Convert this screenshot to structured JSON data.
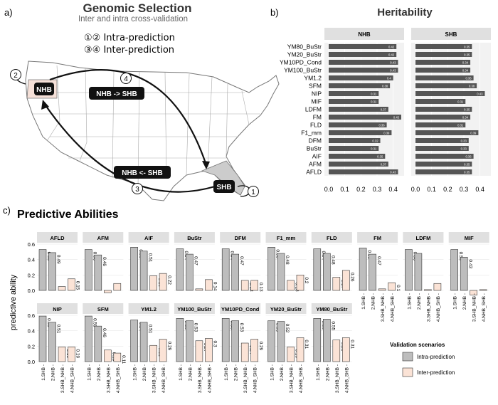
{
  "panel_a": {
    "label": "a)",
    "title": "Genomic Selection",
    "subtitle": "Inter and intra cross-validation",
    "legend_intra": "①② Intra-prediction",
    "legend_inter": "③④ Inter-prediction",
    "box_nhb": "NHB",
    "box_shb": "SHB",
    "arrow_forward": "NHB -> SHB",
    "arrow_backward": "NHB <- SHB",
    "circle_1": "1",
    "circle_2": "2",
    "circle_3": "3",
    "circle_4": "4"
  },
  "panel_b": {
    "label": "b)"
  },
  "panel_c": {
    "label": "c)"
  },
  "colors": {
    "heritability_bar": "#555555",
    "intra": "#bdbdbd",
    "inter": "#fbe3d6",
    "strip": "#e0e0e0",
    "nhb_state": "#f5e0d8",
    "shb_state": "#cccccc"
  },
  "chart_data": [
    {
      "type": "bar",
      "orientation": "horizontal",
      "title": "Heritability",
      "facets": [
        "NHB",
        "SHB"
      ],
      "categories": [
        "YM80_BuStr",
        "YM20_BuStr",
        "YM10PD_Cond",
        "YM100_BuStr",
        "YM1.2",
        "SFM",
        "NIP",
        "MIF",
        "LDFM",
        "FM",
        "FLD",
        "F1_mm",
        "DFM",
        "BuStr",
        "AIF",
        "AFM",
        "AFLD"
      ],
      "series": [
        {
          "name": "NHB",
          "values": [
            0.42,
            0.42,
            0.43,
            0.43,
            0.4,
            0.38,
            0.31,
            0.31,
            0.37,
            0.45,
            0.36,
            0.39,
            0.32,
            0.31,
            0.35,
            0.37,
            0.43
          ]
        },
        {
          "name": "SHB",
          "values": [
            0.35,
            0.35,
            0.34,
            0.34,
            0.36,
            0.38,
            0.43,
            0.31,
            0.35,
            0.34,
            0.31,
            0.39,
            0.33,
            0.33,
            0.36,
            0.35,
            0.35
          ]
        }
      ],
      "xlim": [
        0,
        0.45
      ],
      "xticks": [
        "0.0",
        "0.1",
        "0.2",
        "0.3",
        "0.4"
      ]
    },
    {
      "type": "bar",
      "title": "Predictive Abilities",
      "ylabel": "predictive ability",
      "ylim": [
        0,
        0.6
      ],
      "yticks": [
        "0.0",
        "0.2",
        "0.4",
        "0.6"
      ],
      "categories": [
        "1.SHB",
        "2.NHB",
        "3.SHB_NHB",
        "4.NHB_SHB"
      ],
      "legend_title": "Validation scenarios",
      "legend": [
        {
          "name": "Intra-prediction",
          "color": "#bdbdbd"
        },
        {
          "name": "Inter-prediction",
          "color": "#fbe3d6"
        }
      ],
      "facets": [
        {
          "name": "AFLD",
          "values": [
            0.53,
            0.49,
            0.05,
            0.15
          ],
          "labels": [
            "0.53",
            "0.49",
            "",
            "0.15"
          ]
        },
        {
          "name": "AFM",
          "values": [
            0.53,
            0.46,
            -0.03,
            0.09
          ],
          "labels": [
            "0.53",
            "0.46",
            "",
            ""
          ]
        },
        {
          "name": "AIF",
          "values": [
            0.56,
            0.51,
            0.19,
            0.22
          ],
          "labels": [
            "0.56",
            "0.51",
            "0.19",
            "0.22"
          ]
        },
        {
          "name": "BuStr",
          "values": [
            0.54,
            0.47,
            0.02,
            0.14
          ],
          "labels": [
            "0.54",
            "0.47",
            "",
            "0.14"
          ]
        },
        {
          "name": "DFM",
          "values": [
            0.54,
            0.47,
            0.13,
            0.13
          ],
          "labels": [
            "0.54",
            "0.47",
            "0.13",
            "0.13"
          ]
        },
        {
          "name": "F1_mm",
          "values": [
            0.56,
            0.48,
            0.13,
            0.2
          ],
          "labels": [
            "0.56",
            "0.48",
            "0.13",
            "0.2"
          ]
        },
        {
          "name": "FLD",
          "values": [
            0.54,
            0.48,
            0.17,
            0.26
          ],
          "labels": [
            "0.54",
            "0.48",
            "0.17",
            "0.26"
          ]
        },
        {
          "name": "FM",
          "values": [
            0.55,
            0.47,
            0.02,
            0.1
          ],
          "labels": [
            "0.55",
            "0.47",
            "",
            "0.1"
          ]
        },
        {
          "name": "LDFM",
          "values": [
            0.53,
            0.48,
            0.01,
            0.09
          ],
          "labels": [
            "0.53",
            "",
            "",
            ""
          ]
        },
        {
          "name": "MIF",
          "values": [
            0.53,
            0.43,
            -0.06,
            0.01
          ],
          "labels": [
            "0.53",
            "0.43",
            "",
            ""
          ]
        },
        {
          "name": "NIP",
          "values": [
            0.59,
            0.51,
            0.19,
            0.19
          ],
          "labels": [
            "0.59",
            "0.51",
            "0.19",
            "0.19"
          ]
        },
        {
          "name": "SFM",
          "values": [
            0.59,
            0.46,
            0.15,
            0.11
          ],
          "labels": [
            "0.59",
            "0.46",
            "0.15",
            "0.11"
          ]
        },
        {
          "name": "YM1.2",
          "values": [
            0.54,
            0.51,
            0.21,
            0.29
          ],
          "labels": [
            "0.54",
            "0.51",
            "0.21",
            "0.29"
          ]
        },
        {
          "name": "YM100_BuStr",
          "values": [
            0.56,
            0.53,
            0.27,
            0.3
          ],
          "labels": [
            "0.56",
            "0.53",
            "0.27",
            "0.3"
          ]
        },
        {
          "name": "YM10PD_Cond",
          "values": [
            0.56,
            0.53,
            0.24,
            0.29
          ],
          "labels": [
            "0.56",
            "0.53",
            "0.24",
            "0.29"
          ]
        },
        {
          "name": "YM20_BuStr",
          "values": [
            0.53,
            0.52,
            0.19,
            0.31
          ],
          "labels": [
            "0.53",
            "0.52",
            "0.19",
            "0.31"
          ]
        },
        {
          "name": "YM80_BuStr",
          "values": [
            0.56,
            0.55,
            0.28,
            0.31
          ],
          "labels": [
            "0.56",
            "0.55",
            "0.28",
            "0.31"
          ]
        }
      ]
    }
  ]
}
